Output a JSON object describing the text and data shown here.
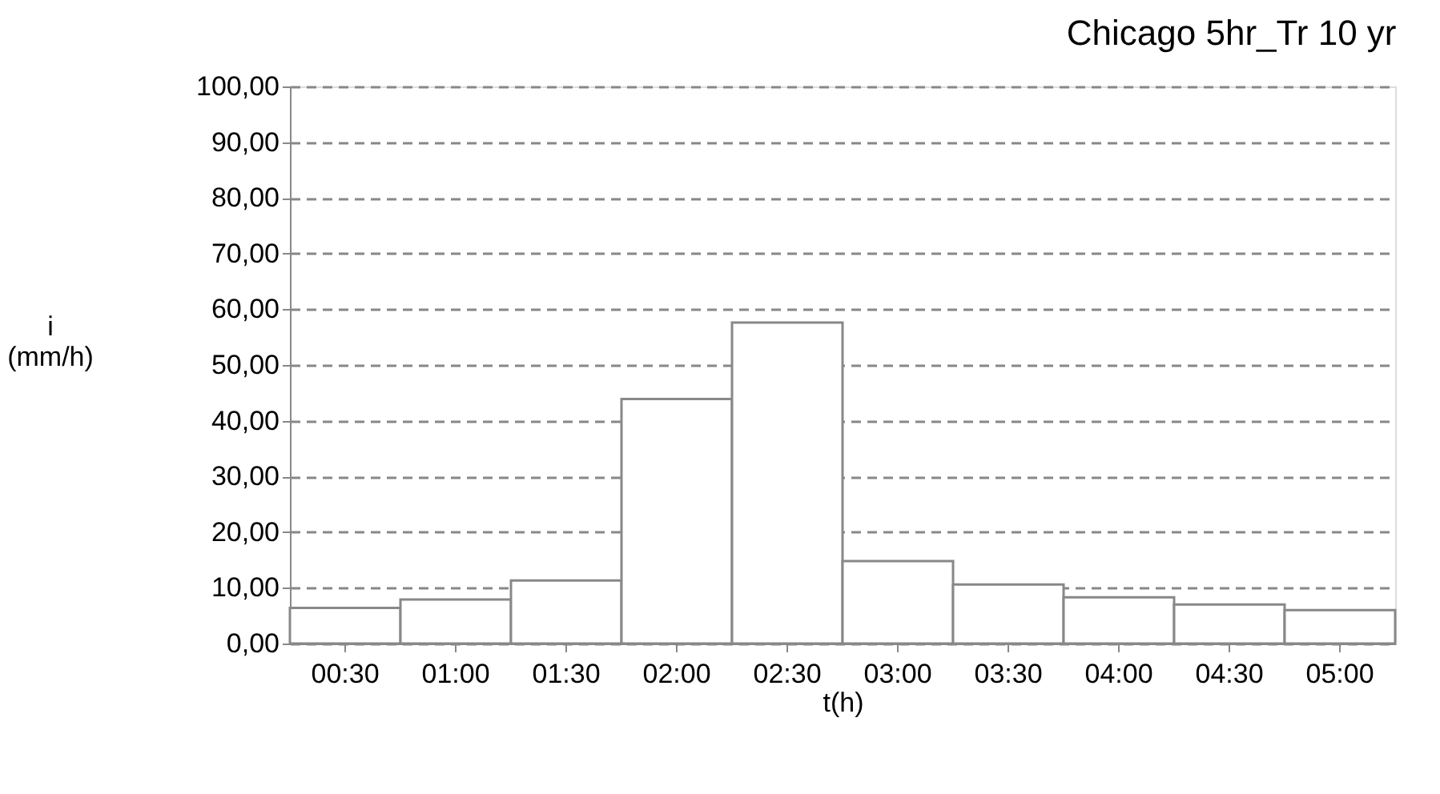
{
  "chart_data": {
    "type": "bar",
    "title": "Chicago 5hr_Tr 10 yr",
    "xlabel": "t(h)",
    "ylabel": "i\n(mm/h)",
    "categories": [
      "00:30",
      "01:00",
      "01:30",
      "02:00",
      "02:30",
      "03:00",
      "03:30",
      "04:00",
      "04:30",
      "05:00"
    ],
    "values": [
      6.4,
      7.9,
      11.3,
      43.9,
      57.6,
      14.8,
      10.6,
      8.3,
      7.0,
      6.0
    ],
    "color": "#ffffff",
    "ylim": [
      0,
      100
    ],
    "yticks": [
      {
        "value": 0,
        "label": "0,00"
      },
      {
        "value": 10,
        "label": "10,00"
      },
      {
        "value": 20,
        "label": "20,00"
      },
      {
        "value": 30,
        "label": "30,00"
      },
      {
        "value": 40,
        "label": "40,00"
      },
      {
        "value": 50,
        "label": "50,00"
      },
      {
        "value": 60,
        "label": "60,00"
      },
      {
        "value": 70,
        "label": "70,00"
      },
      {
        "value": 80,
        "label": "80,00"
      },
      {
        "value": 90,
        "label": "90,00"
      },
      {
        "value": 100,
        "label": "100,00"
      }
    ],
    "grid": "y"
  }
}
